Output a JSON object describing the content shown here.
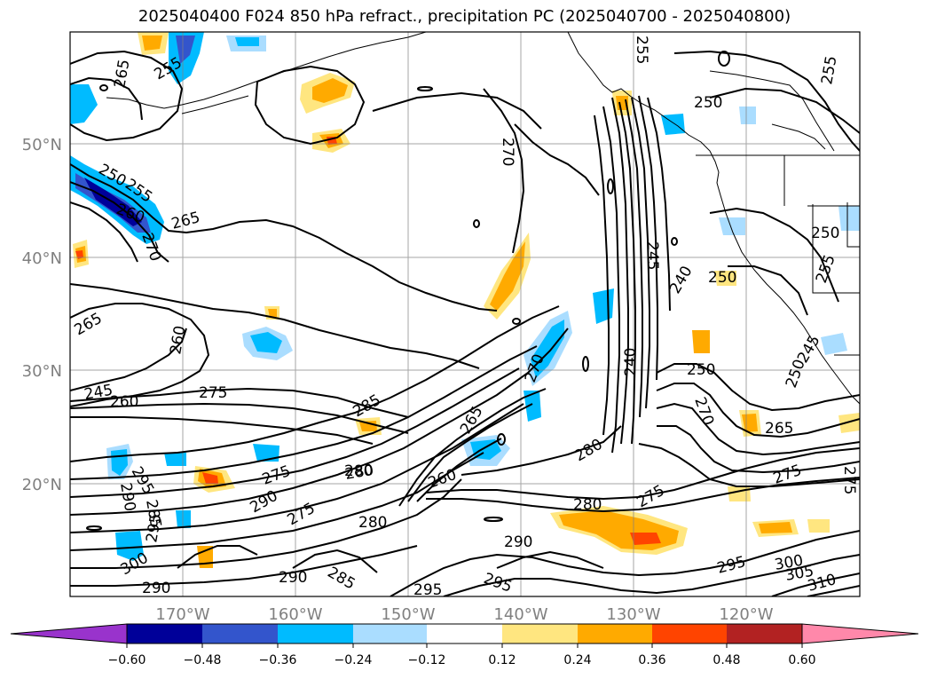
{
  "title": "2025040400 F024 850 hPa refract., precipitation PC (2025040700 - 2025040800)",
  "map": {
    "lon_labels": [
      "170°W",
      "160°W",
      "150°W",
      "140°W",
      "130°W",
      "120°W"
    ],
    "lat_labels": [
      "50°N",
      "40°N",
      "30°N",
      "20°N"
    ],
    "axis_label_color": "#808080"
  },
  "contour_labels": [
    {
      "id": "c-250-w",
      "text": "250"
    },
    {
      "id": "c-255-w",
      "text": "255"
    },
    {
      "id": "c-260-w",
      "text": "260"
    },
    {
      "id": "c-265-w",
      "text": "265"
    },
    {
      "id": "c-270-w",
      "text": "270"
    },
    {
      "id": "c-265-w2",
      "text": "265"
    },
    {
      "id": "c-260-mid",
      "text": "260"
    },
    {
      "id": "c-265-n",
      "text": "265"
    },
    {
      "id": "c-255-nw",
      "text": "255"
    },
    {
      "id": "c-270-n",
      "text": "270"
    },
    {
      "id": "c-255-ne",
      "text": "255"
    },
    {
      "id": "c-250-ne",
      "text": "250"
    },
    {
      "id": "c-255-fne",
      "text": "255"
    },
    {
      "id": "c-245-w",
      "text": "245"
    },
    {
      "id": "c-260-w2",
      "text": "260"
    },
    {
      "id": "c-275-c",
      "text": "275"
    },
    {
      "id": "c-285-c",
      "text": "285"
    },
    {
      "id": "c-265-c",
      "text": "265"
    },
    {
      "id": "c-280-c",
      "text": "280"
    },
    {
      "id": "c-260-c2",
      "text": "260"
    },
    {
      "id": "c-270-c",
      "text": "270"
    },
    {
      "id": "c-240-e",
      "text": "240"
    },
    {
      "id": "c-245-e",
      "text": "245"
    },
    {
      "id": "c-250-e",
      "text": "250"
    },
    {
      "id": "c-240-e2",
      "text": "240"
    },
    {
      "id": "c-250-e2",
      "text": "250"
    },
    {
      "id": "c-270-e",
      "text": "270"
    },
    {
      "id": "c-265-e",
      "text": "265"
    },
    {
      "id": "c-275-e",
      "text": "275"
    },
    {
      "id": "c-280-e",
      "text": "280"
    },
    {
      "id": "c-250-fe",
      "text": "250"
    },
    {
      "id": "c-255-fe",
      "text": "255"
    },
    {
      "id": "c-245-fe",
      "text": "245"
    },
    {
      "id": "c-295-sw",
      "text": "295"
    },
    {
      "id": "c-290-sw",
      "text": "290"
    },
    {
      "id": "c-285-sw",
      "text": "285"
    },
    {
      "id": "c-300-sw",
      "text": "300"
    },
    {
      "id": "c-290-s",
      "text": "290"
    },
    {
      "id": "c-295-s2",
      "text": "295"
    },
    {
      "id": "c-290-s2",
      "text": "290"
    },
    {
      "id": "c-275-s",
      "text": "275"
    },
    {
      "id": "c-275-s2",
      "text": "275"
    },
    {
      "id": "c-280-s",
      "text": "280"
    },
    {
      "id": "c-290-s3",
      "text": "290"
    },
    {
      "id": "c-285-s3",
      "text": "285"
    },
    {
      "id": "c-295-s3",
      "text": "295"
    },
    {
      "id": "c-295-s4",
      "text": "295"
    },
    {
      "id": "c-280-s4",
      "text": "280"
    },
    {
      "id": "c-275-s4",
      "text": "275"
    },
    {
      "id": "c-290-s5",
      "text": "290"
    },
    {
      "id": "c-295-se",
      "text": "295"
    },
    {
      "id": "c-300-se",
      "text": "300"
    },
    {
      "id": "c-305-se",
      "text": "305"
    },
    {
      "id": "c-310-se",
      "text": "310"
    },
    {
      "id": "c-275-se2",
      "text": "275"
    },
    {
      "id": "c-280-w4",
      "text": "280"
    },
    {
      "id": "c-250-e3",
      "text": "250"
    }
  ],
  "colorbar": {
    "levels": [
      -0.6,
      -0.48,
      -0.36,
      -0.24,
      -0.12,
      0.12,
      0.24,
      0.36,
      0.48,
      0.6
    ],
    "tick_labels": [
      "−0.60",
      "−0.48",
      "−0.36",
      "−0.24",
      "−0.12",
      "0.12",
      "0.24",
      "0.36",
      "0.48",
      "0.60"
    ],
    "colors": [
      "#9933cc",
      "#000099",
      "#3355cc",
      "#00bbff",
      "#aaddff",
      "#ffffff",
      "#ffe680",
      "#ffaa00",
      "#ff4400",
      "#b22222",
      "#ff88aa"
    ]
  }
}
